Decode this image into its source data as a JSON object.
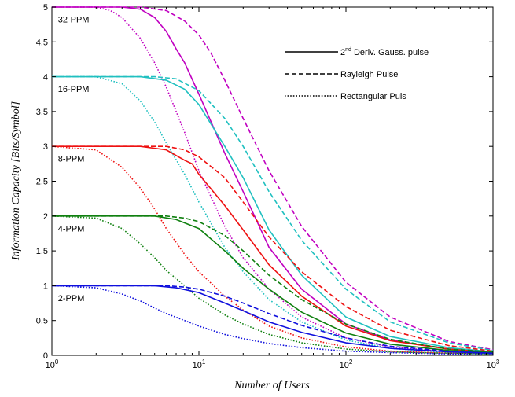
{
  "chart_data": {
    "type": "line",
    "title": "",
    "xlabel": "Number of Users",
    "ylabel": "Information Capacity [Bits/Symbol]",
    "xscale": "log",
    "xlim": [
      1,
      1000
    ],
    "ylim": [
      0,
      5
    ],
    "grid": false,
    "x_ticks": [
      {
        "base": "10",
        "exp": "0",
        "value": 1
      },
      {
        "base": "10",
        "exp": "1",
        "value": 10
      },
      {
        "base": "10",
        "exp": "2",
        "value": 100
      },
      {
        "base": "10",
        "exp": "3",
        "value": 1000
      }
    ],
    "y_ticks": [
      "0",
      "0.5",
      "1",
      "1.5",
      "2",
      "2.5",
      "3",
      "3.5",
      "4",
      "4.5",
      "5"
    ],
    "legend": {
      "placement": "top-right",
      "entries": [
        {
          "style": "solid",
          "text_main": "2",
          "text_sup": "nd",
          "text_rest": " Deriv. Gauss. pulse"
        },
        {
          "style": "dashed",
          "text": "Rayleigh Pulse"
        },
        {
          "style": "dotted",
          "text": "Rectangular Puls"
        }
      ]
    },
    "groups": [
      {
        "label": "32-PPM",
        "color": "#c000c0",
        "label_at": {
          "x": 1.1,
          "y": 4.78
        }
      },
      {
        "label": "16-PPM",
        "color": "#20c0c0",
        "label_at": {
          "x": 1.1,
          "y": 3.78
        }
      },
      {
        "label": "8-PPM",
        "color": "#ee1111",
        "label_at": {
          "x": 1.1,
          "y": 2.78
        }
      },
      {
        "label": "4-PPM",
        "color": "#108010",
        "label_at": {
          "x": 1.1,
          "y": 1.78
        }
      },
      {
        "label": "2-PPM",
        "color": "#1010dd",
        "label_at": {
          "x": 1.1,
          "y": 0.78
        }
      }
    ],
    "series": [
      {
        "group": 0,
        "style": "solid",
        "points": [
          [
            1,
            5
          ],
          [
            3,
            5
          ],
          [
            4,
            4.97
          ],
          [
            5,
            4.85
          ],
          [
            6,
            4.65
          ],
          [
            7,
            4.4
          ],
          [
            8,
            4.2
          ],
          [
            10,
            3.75
          ],
          [
            15,
            2.9
          ],
          [
            20,
            2.35
          ],
          [
            30,
            1.55
          ],
          [
            50,
            0.95
          ],
          [
            100,
            0.45
          ],
          [
            200,
            0.22
          ],
          [
            500,
            0.09
          ],
          [
            1000,
            0.05
          ]
        ]
      },
      {
        "group": 0,
        "style": "dashed",
        "points": [
          [
            1,
            5
          ],
          [
            4,
            5
          ],
          [
            6,
            4.95
          ],
          [
            8,
            4.8
          ],
          [
            10,
            4.6
          ],
          [
            12,
            4.35
          ],
          [
            15,
            3.95
          ],
          [
            20,
            3.4
          ],
          [
            30,
            2.65
          ],
          [
            50,
            1.85
          ],
          [
            100,
            1.05
          ],
          [
            200,
            0.55
          ],
          [
            500,
            0.2
          ],
          [
            1000,
            0.08
          ]
        ]
      },
      {
        "group": 0,
        "style": "dotted",
        "points": [
          [
            1,
            5
          ],
          [
            2,
            5
          ],
          [
            2.5,
            4.95
          ],
          [
            3,
            4.85
          ],
          [
            4,
            4.55
          ],
          [
            5,
            4.2
          ],
          [
            6,
            3.85
          ],
          [
            8,
            3.2
          ],
          [
            10,
            2.65
          ],
          [
            15,
            1.85
          ],
          [
            20,
            1.4
          ],
          [
            30,
            0.95
          ],
          [
            50,
            0.55
          ],
          [
            100,
            0.25
          ],
          [
            200,
            0.12
          ],
          [
            500,
            0.05
          ],
          [
            1000,
            0.03
          ]
        ]
      },
      {
        "group": 1,
        "style": "solid",
        "points": [
          [
            1,
            4
          ],
          [
            4,
            4
          ],
          [
            6,
            3.95
          ],
          [
            8,
            3.82
          ],
          [
            10,
            3.6
          ],
          [
            15,
            3.0
          ],
          [
            20,
            2.55
          ],
          [
            30,
            1.8
          ],
          [
            50,
            1.15
          ],
          [
            100,
            0.55
          ],
          [
            200,
            0.27
          ],
          [
            500,
            0.11
          ],
          [
            1000,
            0.05
          ]
        ]
      },
      {
        "group": 1,
        "style": "dashed",
        "points": [
          [
            1,
            4
          ],
          [
            5,
            4
          ],
          [
            7,
            3.97
          ],
          [
            10,
            3.8
          ],
          [
            15,
            3.4
          ],
          [
            20,
            3.0
          ],
          [
            30,
            2.35
          ],
          [
            50,
            1.65
          ],
          [
            100,
            0.95
          ],
          [
            200,
            0.48
          ],
          [
            500,
            0.18
          ],
          [
            1000,
            0.07
          ]
        ]
      },
      {
        "group": 1,
        "style": "dotted",
        "points": [
          [
            1,
            4
          ],
          [
            2,
            4
          ],
          [
            3,
            3.9
          ],
          [
            4,
            3.65
          ],
          [
            5,
            3.35
          ],
          [
            6,
            3.05
          ],
          [
            8,
            2.6
          ],
          [
            10,
            2.2
          ],
          [
            15,
            1.55
          ],
          [
            20,
            1.2
          ],
          [
            30,
            0.8
          ],
          [
            50,
            0.48
          ],
          [
            100,
            0.22
          ],
          [
            200,
            0.1
          ],
          [
            500,
            0.04
          ],
          [
            1000,
            0.03
          ]
        ]
      },
      {
        "group": 2,
        "style": "solid",
        "points": [
          [
            1,
            3
          ],
          [
            4,
            3
          ],
          [
            6,
            2.95
          ],
          [
            8,
            2.8
          ],
          [
            9,
            2.75
          ],
          [
            10,
            2.6
          ],
          [
            15,
            2.15
          ],
          [
            20,
            1.8
          ],
          [
            30,
            1.3
          ],
          [
            50,
            0.85
          ],
          [
            100,
            0.42
          ],
          [
            200,
            0.21
          ],
          [
            500,
            0.09
          ],
          [
            1000,
            0.04
          ]
        ]
      },
      {
        "group": 2,
        "style": "dashed",
        "points": [
          [
            1,
            3
          ],
          [
            6,
            3
          ],
          [
            8,
            2.95
          ],
          [
            10,
            2.85
          ],
          [
            15,
            2.55
          ],
          [
            20,
            2.2
          ],
          [
            30,
            1.7
          ],
          [
            50,
            1.2
          ],
          [
            100,
            0.7
          ],
          [
            200,
            0.36
          ],
          [
            500,
            0.14
          ],
          [
            1000,
            0.06
          ]
        ]
      },
      {
        "group": 2,
        "style": "dotted",
        "points": [
          [
            1,
            3
          ],
          [
            2,
            2.95
          ],
          [
            3,
            2.7
          ],
          [
            4,
            2.4
          ],
          [
            5,
            2.1
          ],
          [
            6,
            1.82
          ],
          [
            8,
            1.45
          ],
          [
            10,
            1.2
          ],
          [
            15,
            0.85
          ],
          [
            20,
            0.65
          ],
          [
            30,
            0.42
          ],
          [
            50,
            0.25
          ],
          [
            100,
            0.12
          ],
          [
            200,
            0.06
          ],
          [
            500,
            0.03
          ],
          [
            1000,
            0.02
          ]
        ]
      },
      {
        "group": 3,
        "style": "solid",
        "points": [
          [
            1,
            2
          ],
          [
            5,
            2
          ],
          [
            7,
            1.95
          ],
          [
            10,
            1.82
          ],
          [
            15,
            1.5
          ],
          [
            20,
            1.25
          ],
          [
            30,
            0.95
          ],
          [
            50,
            0.62
          ],
          [
            100,
            0.32
          ],
          [
            200,
            0.16
          ],
          [
            500,
            0.07
          ],
          [
            1000,
            0.04
          ]
        ]
      },
      {
        "group": 3,
        "style": "dashed",
        "points": [
          [
            1,
            2
          ],
          [
            6,
            2
          ],
          [
            8,
            1.97
          ],
          [
            10,
            1.92
          ],
          [
            15,
            1.72
          ],
          [
            20,
            1.5
          ],
          [
            30,
            1.15
          ],
          [
            50,
            0.8
          ],
          [
            100,
            0.45
          ],
          [
            200,
            0.23
          ],
          [
            500,
            0.09
          ],
          [
            1000,
            0.05
          ]
        ]
      },
      {
        "group": 3,
        "style": "dotted",
        "points": [
          [
            1,
            2
          ],
          [
            2,
            1.97
          ],
          [
            3,
            1.82
          ],
          [
            4,
            1.6
          ],
          [
            5,
            1.4
          ],
          [
            6,
            1.22
          ],
          [
            8,
            1.0
          ],
          [
            10,
            0.82
          ],
          [
            15,
            0.58
          ],
          [
            20,
            0.45
          ],
          [
            30,
            0.3
          ],
          [
            50,
            0.18
          ],
          [
            100,
            0.09
          ],
          [
            200,
            0.05
          ],
          [
            500,
            0.03
          ],
          [
            1000,
            0.02
          ]
        ]
      },
      {
        "group": 4,
        "style": "solid",
        "points": [
          [
            1,
            1
          ],
          [
            5,
            1
          ],
          [
            7,
            0.97
          ],
          [
            10,
            0.9
          ],
          [
            15,
            0.75
          ],
          [
            20,
            0.64
          ],
          [
            30,
            0.48
          ],
          [
            50,
            0.33
          ],
          [
            100,
            0.18
          ],
          [
            200,
            0.1
          ],
          [
            500,
            0.05
          ],
          [
            1000,
            0.03
          ]
        ]
      },
      {
        "group": 4,
        "style": "dashed",
        "points": [
          [
            1,
            1
          ],
          [
            6,
            1
          ],
          [
            8,
            0.98
          ],
          [
            10,
            0.95
          ],
          [
            15,
            0.85
          ],
          [
            20,
            0.75
          ],
          [
            30,
            0.6
          ],
          [
            50,
            0.43
          ],
          [
            100,
            0.25
          ],
          [
            200,
            0.13
          ],
          [
            500,
            0.06
          ],
          [
            1000,
            0.03
          ]
        ]
      },
      {
        "group": 4,
        "style": "dotted",
        "points": [
          [
            1,
            1
          ],
          [
            2,
            0.97
          ],
          [
            3,
            0.88
          ],
          [
            4,
            0.78
          ],
          [
            5,
            0.68
          ],
          [
            6,
            0.6
          ],
          [
            8,
            0.5
          ],
          [
            10,
            0.42
          ],
          [
            15,
            0.3
          ],
          [
            20,
            0.24
          ],
          [
            30,
            0.17
          ],
          [
            50,
            0.11
          ],
          [
            100,
            0.06
          ],
          [
            200,
            0.04
          ],
          [
            500,
            0.02
          ],
          [
            1000,
            0.02
          ]
        ]
      }
    ]
  }
}
